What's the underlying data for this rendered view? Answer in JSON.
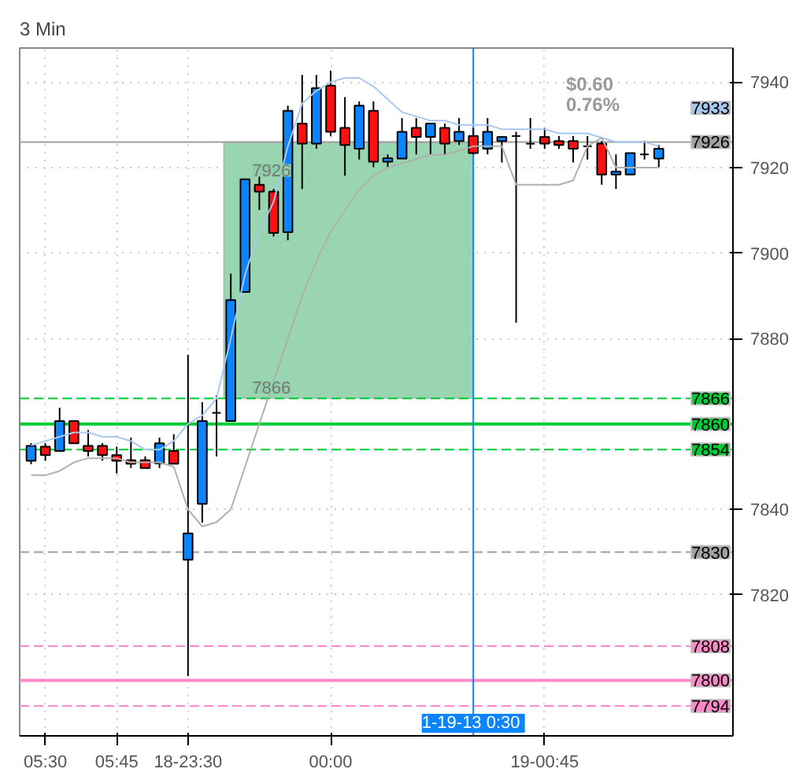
{
  "chart_data": {
    "type": "candlestick",
    "title": "3 Min",
    "categories": [
      null,
      "05:30",
      null,
      null,
      null,
      null,
      "05:45",
      null,
      null,
      null,
      null,
      "18-23:30",
      null,
      null,
      null,
      null,
      null,
      null,
      null,
      null,
      null,
      "00:00",
      null,
      null,
      null,
      null,
      null,
      null,
      null,
      null,
      null,
      null,
      null,
      null,
      null,
      null,
      "19-00:45",
      null,
      null,
      null,
      null,
      null,
      null,
      null,
      null
    ],
    "ohlc": [
      [
        7851.4,
        7855.5,
        7850.6,
        7854.9
      ],
      [
        7854.7,
        7855.5,
        7851.4,
        7852.7
      ],
      [
        7853.7,
        7863.8,
        7853.7,
        7860.7
      ],
      [
        7860.7,
        7860.7,
        7855.5,
        7855.5
      ],
      [
        7854.9,
        7858.6,
        7852.4,
        7853.7
      ],
      [
        7854.9,
        7855.5,
        7851.4,
        7852.7
      ],
      [
        7852.7,
        7854.7,
        7848.4,
        7851.4
      ],
      [
        7851.5,
        7856.8,
        7849.7,
        7850.7
      ],
      [
        7851.5,
        7852.4,
        7849.7,
        7849.7
      ],
      [
        7850.8,
        7856.8,
        7849.7,
        7855.5
      ],
      [
        7853.7,
        7857.6,
        7850.7,
        7850.7
      ],
      [
        7828.2,
        7876.2,
        7801.0,
        7834.4
      ],
      [
        7841.3,
        7865.1,
        7836.9,
        7860.7
      ],
      [
        7862.6,
        7866.7,
        7852.4,
        7862.6
      ],
      [
        7860.7,
        7895.2,
        7860.7,
        7889.0
      ],
      [
        7890.9,
        7917.3,
        7890.9,
        7917.3
      ],
      [
        7916.0,
        7920.4,
        7910.1,
        7914.4
      ],
      [
        7914.4,
        7915.0,
        7903.9,
        7904.7
      ],
      [
        7904.9,
        7934.5,
        7903.0,
        7933.3
      ],
      [
        7930.3,
        7941.7,
        7915.0,
        7925.6
      ],
      [
        7925.6,
        7941.7,
        7924.4,
        7938.6
      ],
      [
        7939.2,
        7942.7,
        7927.4,
        7928.4
      ],
      [
        7929.3,
        7936.5,
        7918.1,
        7925.3
      ],
      [
        7924.4,
        7935.5,
        7921.9,
        7934.5
      ],
      [
        7933.3,
        7935.5,
        7920.1,
        7921.4
      ],
      [
        7921.4,
        7923.1,
        7920.1,
        7922.2
      ],
      [
        7922.1,
        7931.6,
        7922.1,
        7928.4
      ],
      [
        7929.3,
        7931.6,
        7923.1,
        7927.2
      ],
      [
        7927.2,
        7930.3,
        7923.1,
        7930.3
      ],
      [
        7929.3,
        7930.3,
        7923.1,
        7925.6
      ],
      [
        7926.2,
        7931.6,
        7925.3,
        7928.4
      ],
      [
        7927.4,
        7929.3,
        7923.1,
        7923.4
      ],
      [
        7924.4,
        7931.6,
        7923.1,
        7928.4
      ],
      [
        7926.2,
        7927.4,
        7921.2,
        7927.2
      ],
      [
        7927.4,
        7928.4,
        7883.7,
        7927.4
      ],
      [
        7925.6,
        7931.6,
        7924.4,
        7925.6
      ],
      [
        7927.2,
        7929.3,
        7924.4,
        7925.6
      ],
      [
        7926.2,
        7927.4,
        7924.4,
        7925.3
      ],
      [
        7926.2,
        7927.4,
        7921.2,
        7924.4
      ],
      [
        7925.0,
        7927.4,
        7921.9,
        7925.0
      ],
      [
        7925.6,
        7926.2,
        7916.0,
        7918.4
      ],
      [
        7918.4,
        7923.1,
        7915.0,
        7919.1
      ],
      [
        7918.4,
        7923.4,
        7918.4,
        7923.4
      ],
      [
        7923.1,
        7926.2,
        7921.9,
        7923.1
      ],
      [
        7922.1,
        7925.3,
        7920.1,
        7924.4
      ]
    ],
    "colors": [
      "#0a84ff",
      "#ff1010",
      "#0a84ff",
      "#ff1010",
      "#ff1010",
      "#ff1010",
      "#ff1010",
      "#ff1010",
      "#ff1010",
      "#0a84ff",
      "#ff1010",
      "#0a84ff",
      "#0a84ff",
      "#000000",
      "#0a84ff",
      "#0a84ff",
      "#ff1010",
      "#ff1010",
      "#0a84ff",
      "#ff1010",
      "#0a84ff",
      "#ff1010",
      "#ff1010",
      "#0a84ff",
      "#ff1010",
      "#0a84ff",
      "#0a84ff",
      "#ff1010",
      "#0a84ff",
      "#ff1010",
      "#0a84ff",
      "#ff1010",
      "#0a84ff",
      "#0a84ff",
      "#000000",
      "#000000",
      "#ff1010",
      "#ff1010",
      "#ff1010",
      "#000000",
      "#ff1010",
      "#0a84ff",
      "#0a84ff",
      "#000000",
      "#0a84ff"
    ],
    "series": [
      {
        "type": "line",
        "color": "#a8c8f0",
        "values": [
          7855,
          7856,
          7857,
          7858,
          7858,
          7857,
          7857,
          7856,
          7854,
          7854,
          7856,
          7860,
          7862,
          7866,
          7880,
          7895,
          7905,
          7912,
          7925,
          7935,
          7938,
          7940,
          7941,
          7941,
          7939,
          7936,
          7933,
          7932,
          7931,
          7931,
          7930,
          7930,
          7930,
          7929,
          7929,
          7929,
          7929,
          7928,
          7928,
          7928,
          7927,
          7926,
          7926,
          7926,
          7925
        ]
      },
      {
        "type": "line",
        "color": "#b0b0b0",
        "values": [
          7848,
          7848,
          7849,
          7851,
          7852,
          7852,
          7852,
          7851,
          7851,
          7851,
          7850,
          7840,
          7836,
          7837,
          7840,
          7850,
          7860,
          7870,
          7880,
          7890,
          7898,
          7905,
          7910,
          7915,
          7918,
          7920,
          7921,
          7922,
          7923,
          7923,
          7924,
          7925,
          7925,
          7925,
          7916,
          7916,
          7916,
          7916,
          7917,
          7925,
          7927,
          7920,
          7920,
          7920,
          7920
        ]
      }
    ],
    "ylim": [
      7787,
      7948
    ],
    "yticks": [
      7820,
      7840,
      7880,
      7900,
      7920,
      7940
    ],
    "grid": true,
    "ref_lines": [
      {
        "axis": "y",
        "value": 7926,
        "label": "7926",
        "color": "#a0a0a0",
        "line_style": "solid"
      },
      {
        "axis": "y",
        "value": 7866,
        "label": "7866",
        "color": "#00cc33",
        "line_style": "dashed"
      },
      {
        "axis": "y",
        "value": 7860,
        "label": "7860",
        "color": "#00cc33",
        "line_style": "solid"
      },
      {
        "axis": "y",
        "value": 7854,
        "label": "7854",
        "color": "#00cc33",
        "line_style": "dashed"
      },
      {
        "axis": "y",
        "value": 7830,
        "label": "7830",
        "color": "#a0a0a0",
        "line_style": "dashed"
      },
      {
        "axis": "y",
        "value": 7808,
        "label": "7808",
        "color": "#ff88c8",
        "line_style": "dashed"
      },
      {
        "axis": "y",
        "value": 7800,
        "label": "7800",
        "color": "#ff88c8",
        "line_style": "solid"
      },
      {
        "axis": "y",
        "value": 7794,
        "label": "7794",
        "color": "#ff88c8",
        "line_style": "dashed"
      }
    ],
    "bands": [
      {
        "axis": "y",
        "from": 7866,
        "to": 7926,
        "color": "#8fd0a8"
      }
    ],
    "annotations": [
      "7926",
      "7866",
      "$0.60",
      "0.76%",
      "7933",
      "1-19-13  0:30"
    ]
  }
}
